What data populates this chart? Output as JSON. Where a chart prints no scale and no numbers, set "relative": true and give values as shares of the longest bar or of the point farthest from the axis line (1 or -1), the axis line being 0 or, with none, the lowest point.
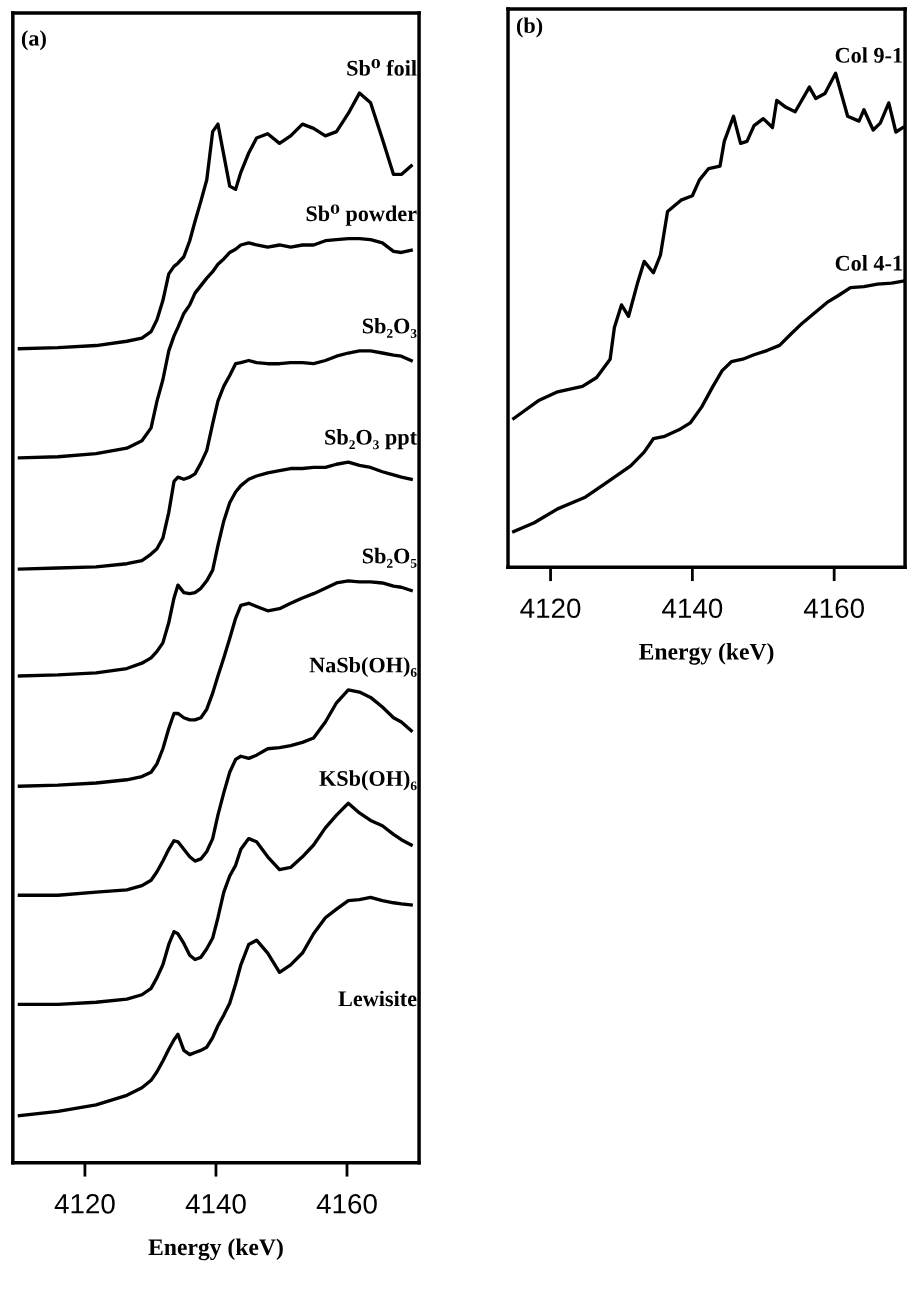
{
  "chart_data": [
    {
      "type": "line",
      "xlabel": "Energy (keV)",
      "annotations": [
        "(a)"
      ],
      "relative": true,
      "tick_labels": "x",
      "xlim": [
        4109,
        4171
      ],
      "xticks": [
        4120,
        4140,
        4160
      ],
      "x": [
        4110.0,
        4115.9,
        4121.7,
        4126.4,
        4128.7,
        4130.1,
        4131.0,
        4131.9,
        4132.8,
        4133.6,
        4134.2,
        4135.1,
        4136.0,
        4136.8,
        4137.7,
        4138.6,
        4139.5,
        4140.3,
        4141.2,
        4142.1,
        4143.0,
        4143.8,
        4145.0,
        4146.2,
        4147.9,
        4149.7,
        4151.4,
        4153.2,
        4154.9,
        4156.7,
        4158.4,
        4160.2,
        4161.9,
        4163.6,
        4165.4,
        4167.1,
        4168.3,
        4169.8
      ],
      "series": [
        {
          "name": "Sb⁰ foil",
          "color": "#000000",
          "values": [
            0.761,
            0.762,
            0.764,
            0.768,
            0.771,
            0.777,
            0.788,
            0.806,
            0.831,
            0.838,
            0.841,
            0.847,
            0.862,
            0.88,
            0.899,
            0.919,
            0.964,
            0.971,
            0.942,
            0.913,
            0.91,
            0.926,
            0.944,
            0.958,
            0.962,
            0.953,
            0.96,
            0.971,
            0.967,
            0.96,
            0.964,
            0.981,
            1.0,
            0.991,
            0.957,
            0.924,
            0.924,
            0.932
          ]
        },
        {
          "name": "Sb⁰ powder",
          "color": "#000000",
          "values": [
            0.659,
            0.66,
            0.663,
            0.668,
            0.675,
            0.687,
            0.712,
            0.732,
            0.759,
            0.773,
            0.781,
            0.794,
            0.802,
            0.813,
            0.82,
            0.827,
            0.833,
            0.84,
            0.845,
            0.851,
            0.854,
            0.858,
            0.86,
            0.858,
            0.856,
            0.858,
            0.856,
            0.858,
            0.858,
            0.862,
            0.863,
            0.864,
            0.864,
            0.863,
            0.86,
            0.852,
            0.851,
            0.853
          ]
        },
        {
          "name": "Sb₂O₃",
          "color": "#000000",
          "values": [
            0.555,
            0.556,
            0.557,
            0.56,
            0.563,
            0.569,
            0.574,
            0.584,
            0.608,
            0.637,
            0.641,
            0.639,
            0.641,
            0.644,
            0.654,
            0.666,
            0.691,
            0.712,
            0.726,
            0.736,
            0.747,
            0.748,
            0.75,
            0.748,
            0.747,
            0.747,
            0.748,
            0.748,
            0.747,
            0.75,
            0.754,
            0.757,
            0.759,
            0.759,
            0.757,
            0.755,
            0.754,
            0.75
          ]
        },
        {
          "name": "Sb₂O₃ ppt",
          "color": "#000000",
          "values": [
            0.455,
            0.456,
            0.458,
            0.462,
            0.467,
            0.472,
            0.478,
            0.486,
            0.505,
            0.528,
            0.54,
            0.533,
            0.532,
            0.533,
            0.537,
            0.544,
            0.554,
            0.577,
            0.6,
            0.617,
            0.627,
            0.633,
            0.639,
            0.642,
            0.645,
            0.647,
            0.649,
            0.649,
            0.65,
            0.65,
            0.653,
            0.655,
            0.652,
            0.65,
            0.646,
            0.643,
            0.641,
            0.639
          ]
        },
        {
          "name": "Sb₂O₅",
          "color": "#000000",
          "values": [
            0.352,
            0.353,
            0.355,
            0.358,
            0.361,
            0.365,
            0.373,
            0.387,
            0.406,
            0.42,
            0.42,
            0.416,
            0.414,
            0.414,
            0.416,
            0.424,
            0.439,
            0.455,
            0.472,
            0.49,
            0.509,
            0.521,
            0.523,
            0.52,
            0.516,
            0.518,
            0.523,
            0.528,
            0.532,
            0.537,
            0.542,
            0.544,
            0.543,
            0.543,
            0.542,
            0.539,
            0.538,
            0.535
          ]
        },
        {
          "name": "NaSb(OH)₆",
          "color": "#000000",
          "values": [
            0.25,
            0.25,
            0.253,
            0.255,
            0.259,
            0.264,
            0.272,
            0.282,
            0.293,
            0.301,
            0.3,
            0.293,
            0.286,
            0.282,
            0.284,
            0.291,
            0.303,
            0.325,
            0.346,
            0.365,
            0.377,
            0.38,
            0.378,
            0.381,
            0.387,
            0.388,
            0.39,
            0.393,
            0.397,
            0.412,
            0.43,
            0.442,
            0.44,
            0.435,
            0.426,
            0.416,
            0.412,
            0.404
          ]
        },
        {
          "name": "KSb(OH)₆",
          "color": "#000000",
          "values": [
            0.148,
            0.148,
            0.15,
            0.153,
            0.157,
            0.163,
            0.173,
            0.185,
            0.204,
            0.216,
            0.214,
            0.205,
            0.194,
            0.19,
            0.192,
            0.2,
            0.21,
            0.229,
            0.253,
            0.268,
            0.278,
            0.293,
            0.303,
            0.3,
            0.286,
            0.274,
            0.276,
            0.286,
            0.297,
            0.313,
            0.325,
            0.336,
            0.327,
            0.32,
            0.315,
            0.307,
            0.302,
            0.297
          ]
        },
        {
          "name": "Lewisite",
          "color": "#000000",
          "values": [
            0.044,
            0.048,
            0.054,
            0.063,
            0.07,
            0.077,
            0.085,
            0.095,
            0.106,
            0.115,
            0.12,
            0.105,
            0.101,
            0.103,
            0.105,
            0.108,
            0.117,
            0.128,
            0.138,
            0.149,
            0.167,
            0.185,
            0.204,
            0.208,
            0.196,
            0.178,
            0.185,
            0.196,
            0.214,
            0.229,
            0.237,
            0.245,
            0.246,
            0.248,
            0.245,
            0.243,
            0.242,
            0.241
          ]
        }
      ]
    },
    {
      "type": "line",
      "xlabel": "Energy (keV)",
      "annotations": [
        "(b)"
      ],
      "relative": true,
      "tick_labels": "x",
      "xlim": [
        4114,
        4170
      ],
      "xticks": [
        4120,
        4140,
        4160
      ],
      "series": [
        {
          "name": "Col 9-1",
          "color": "#000000",
          "x": [
            4114.8,
            4118.4,
            4121.0,
            4124.5,
            4126.5,
            4128.4,
            4129.0,
            4130.0,
            4131.0,
            4132.3,
            4133.2,
            4134.5,
            4135.5,
            4136.5,
            4138.4,
            4140.0,
            4141.0,
            4142.3,
            4143.9,
            4144.5,
            4145.8,
            4146.8,
            4147.7,
            4148.7,
            4150.0,
            4151.3,
            4151.9,
            4153.2,
            4154.5,
            4156.5,
            4157.4,
            4158.7,
            4160.2,
            4161.9,
            4163.5,
            4164.2,
            4165.5,
            4166.5,
            4167.7,
            4168.7,
            4169.7
          ],
          "values": [
            0.301,
            0.338,
            0.355,
            0.366,
            0.384,
            0.421,
            0.485,
            0.531,
            0.508,
            0.577,
            0.619,
            0.596,
            0.632,
            0.72,
            0.743,
            0.752,
            0.784,
            0.807,
            0.812,
            0.862,
            0.913,
            0.858,
            0.862,
            0.894,
            0.908,
            0.89,
            0.945,
            0.931,
            0.922,
            0.972,
            0.949,
            0.959,
            1.0,
            0.913,
            0.903,
            0.926,
            0.885,
            0.899,
            0.94,
            0.881,
            0.89
          ]
        },
        {
          "name": "Col 4-1",
          "color": "#000000",
          "x": [
            4114.8,
            4117.7,
            4121.0,
            4124.8,
            4128.1,
            4131.3,
            4133.2,
            4134.5,
            4136.1,
            4138.1,
            4139.7,
            4141.3,
            4142.9,
            4144.2,
            4145.5,
            4147.1,
            4148.7,
            4150.6,
            4152.3,
            4153.9,
            4155.5,
            4157.1,
            4159.0,
            4160.6,
            4162.3,
            4164.2,
            4166.1,
            4168.1,
            4169.7
          ],
          "values": [
            0.072,
            0.09,
            0.118,
            0.141,
            0.173,
            0.205,
            0.233,
            0.26,
            0.265,
            0.278,
            0.292,
            0.324,
            0.366,
            0.398,
            0.416,
            0.421,
            0.43,
            0.439,
            0.449,
            0.472,
            0.494,
            0.513,
            0.536,
            0.55,
            0.566,
            0.568,
            0.573,
            0.575,
            0.579
          ]
        }
      ]
    }
  ]
}
